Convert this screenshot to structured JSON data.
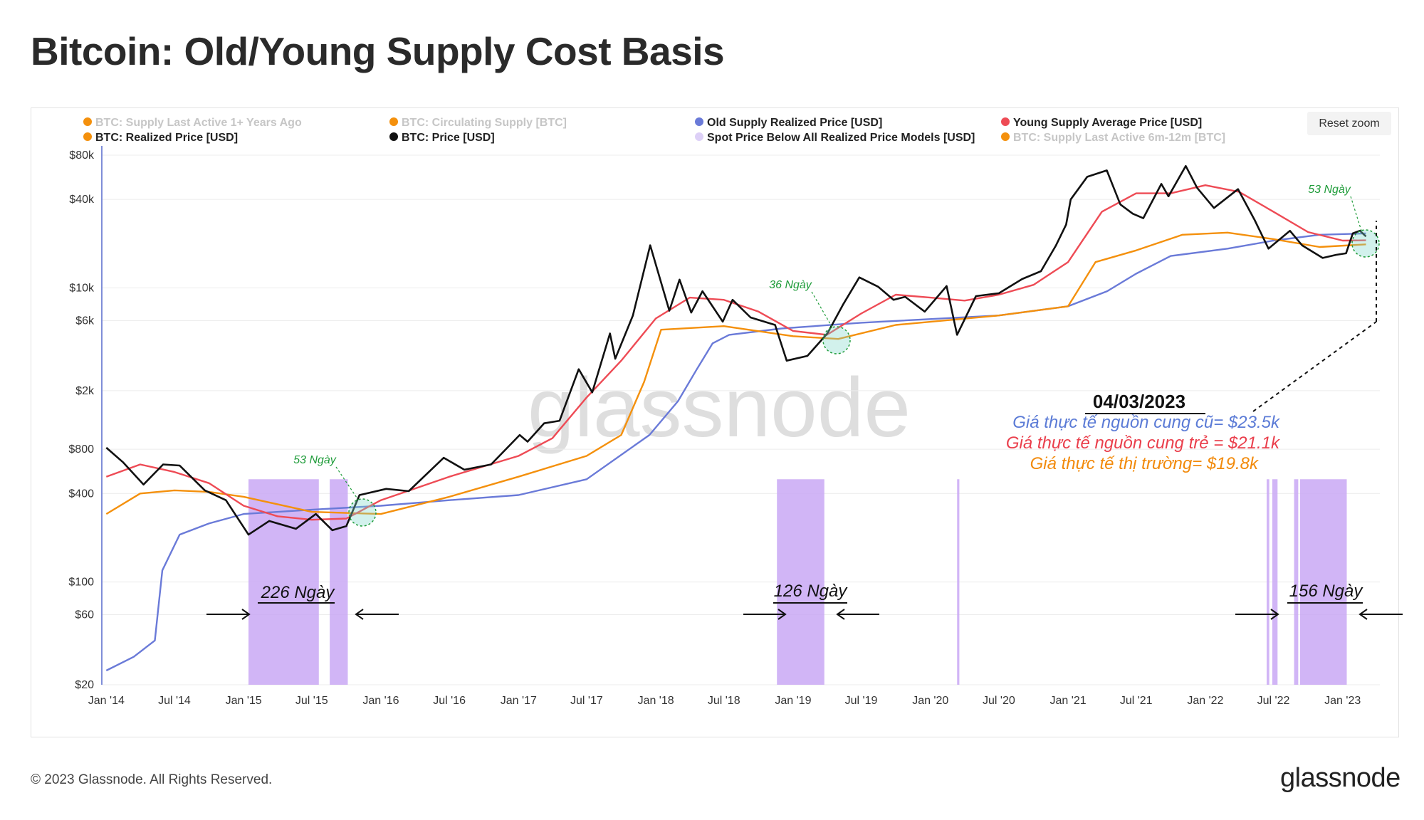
{
  "title": "Bitcoin: Old/Young Supply Cost Basis",
  "reset_zoom": "Reset zoom",
  "copyright": "© 2023 Glassnode. All Rights Reserved.",
  "brand": "glassnode",
  "watermark": "glassnode",
  "colors": {
    "price": "#111111",
    "old_supply": "#6a7ad8",
    "young_supply": "#ee4b55",
    "realized": "#f4900c",
    "spot_below": "#c9a8f5",
    "disabled": "#c6c6c6",
    "blue_text": "#5b7bd6",
    "red_text": "#ea3f4c",
    "orange_text": "#f28a0b",
    "green_text": "#1f9c3a"
  },
  "chart_data": {
    "type": "line",
    "y_scale": "log",
    "ylim": [
      20,
      80000
    ],
    "xlim": [
      "2013-12-20",
      "2023-04-10"
    ],
    "y_ticks": [
      "$20",
      "$60",
      "$100",
      "$400",
      "$800",
      "$2k",
      "$6k",
      "$10k",
      "$40k",
      "$80k"
    ],
    "y_tick_values": [
      20,
      60,
      100,
      400,
      800,
      2000,
      6000,
      10000,
      40000,
      80000
    ],
    "x_ticks": [
      "Jan '14",
      "Jul '14",
      "Jan '15",
      "Jul '15",
      "Jan '16",
      "Jul '16",
      "Jan '17",
      "Jul '17",
      "Jan '18",
      "Jul '18",
      "Jan '19",
      "Jul '19",
      "Jan '20",
      "Jul '20",
      "Jan '21",
      "Jul '21",
      "Jan '22",
      "Jul '22",
      "Jan '23"
    ],
    "x_tick_dates": [
      "2014-01-01",
      "2014-07-01",
      "2015-01-01",
      "2015-07-01",
      "2016-01-01",
      "2016-07-01",
      "2017-01-01",
      "2017-07-01",
      "2018-01-01",
      "2018-07-01",
      "2019-01-01",
      "2019-07-01",
      "2020-01-01",
      "2020-07-01",
      "2021-01-01",
      "2021-07-01",
      "2022-01-01",
      "2022-07-01",
      "2023-01-01"
    ],
    "legend": [
      {
        "label": "BTC: Supply Last Active 1+ Years Ago",
        "color": "#f4900c",
        "enabled": false
      },
      {
        "label": "BTC: Circulating Supply [BTC]",
        "color": "#f4900c",
        "enabled": false
      },
      {
        "label": "Old Supply Realized Price [USD]",
        "color": "#6a7ad8",
        "enabled": true
      },
      {
        "label": "Young Supply Average Price [USD]",
        "color": "#ee4b55",
        "enabled": true
      },
      {
        "label": "BTC: Realized Price [USD]",
        "color": "#f4900c",
        "enabled": true
      },
      {
        "label": "BTC: Price [USD]",
        "color": "#111111",
        "enabled": true
      },
      {
        "label": "Spot Price Below All Realized Price Models [USD]",
        "color": "#ddd0f7",
        "enabled": true
      },
      {
        "label": "BTC: Supply Last Active 6m-12m [BTC]",
        "color": "#f4900c",
        "enabled": false
      }
    ],
    "series": [
      {
        "name": "BTC: Price [USD]",
        "color": "#111111",
        "x": [
          "2014-01-01",
          "2014-02-15",
          "2014-04-10",
          "2014-06-01",
          "2014-07-15",
          "2014-09-20",
          "2014-11-15",
          "2015-01-14",
          "2015-03-10",
          "2015-05-20",
          "2015-07-12",
          "2015-08-25",
          "2015-10-01",
          "2015-11-05",
          "2016-01-15",
          "2016-03-15",
          "2016-06-16",
          "2016-08-10",
          "2016-10-20",
          "2017-01-04",
          "2017-01-25",
          "2017-03-10",
          "2017-04-20",
          "2017-06-10",
          "2017-07-16",
          "2017-09-01",
          "2017-09-15",
          "2017-11-01",
          "2017-12-17",
          "2018-02-06",
          "2018-03-05",
          "2018-04-05",
          "2018-05-05",
          "2018-06-28",
          "2018-07-24",
          "2018-09-10",
          "2018-11-14",
          "2018-12-15",
          "2019-02-08",
          "2019-04-02",
          "2019-05-15",
          "2019-06-26",
          "2019-08-15",
          "2019-09-25",
          "2019-10-26",
          "2019-12-17",
          "2020-02-13",
          "2020-03-12",
          "2020-05-01",
          "2020-07-01",
          "2020-09-01",
          "2020-10-21",
          "2020-11-30",
          "2020-12-27",
          "2021-01-08",
          "2021-02-21",
          "2021-04-14",
          "2021-05-20",
          "2021-06-22",
          "2021-07-20",
          "2021-09-06",
          "2021-09-25",
          "2021-11-10",
          "2021-12-10",
          "2022-01-24",
          "2022-03-29",
          "2022-05-12",
          "2022-06-18",
          "2022-08-14",
          "2022-09-15",
          "2022-11-09",
          "2022-12-15",
          "2023-01-10",
          "2023-01-28",
          "2023-02-16",
          "2023-03-04"
        ],
        "values": [
          820,
          650,
          460,
          630,
          620,
          420,
          360,
          210,
          260,
          230,
          290,
          225,
          240,
          390,
          430,
          415,
          700,
          580,
          630,
          1000,
          900,
          1200,
          1250,
          2800,
          1950,
          4900,
          3300,
          6500,
          19500,
          7000,
          11400,
          6800,
          9500,
          5900,
          8300,
          6300,
          5600,
          3200,
          3450,
          4900,
          7800,
          11800,
          10200,
          8300,
          8700,
          6900,
          10300,
          4800,
          8800,
          9200,
          11500,
          13000,
          19500,
          27000,
          40000,
          57000,
          63000,
          37000,
          32000,
          29800,
          51000,
          42000,
          67500,
          48000,
          35000,
          47000,
          29000,
          18500,
          24500,
          19500,
          16000,
          16800,
          17200,
          23500,
          24500,
          22400
        ]
      },
      {
        "name": "Young Supply Average Price [USD]",
        "color": "#ee4b55",
        "x": [
          "2014-01-01",
          "2014-04-01",
          "2014-07-01",
          "2014-10-01",
          "2015-01-01",
          "2015-04-01",
          "2015-07-01",
          "2015-10-01",
          "2016-01-01",
          "2016-07-01",
          "2017-01-01",
          "2017-04-01",
          "2017-07-01",
          "2017-10-01",
          "2018-01-01",
          "2018-04-01",
          "2018-07-01",
          "2018-10-01",
          "2019-01-01",
          "2019-04-01",
          "2019-07-01",
          "2019-10-01",
          "2020-01-01",
          "2020-04-01",
          "2020-07-01",
          "2020-10-01",
          "2021-01-01",
          "2021-04-01",
          "2021-07-01",
          "2021-10-01",
          "2022-01-01",
          "2022-04-01",
          "2022-07-01",
          "2022-10-01",
          "2023-01-01",
          "2023-03-04"
        ],
        "values": [
          520,
          630,
          560,
          470,
          330,
          280,
          265,
          270,
          360,
          520,
          720,
          950,
          1800,
          3200,
          6200,
          8600,
          8300,
          6900,
          5100,
          4800,
          6700,
          9000,
          8600,
          8200,
          9000,
          10500,
          15000,
          33000,
          44000,
          44000,
          50000,
          45000,
          33000,
          24000,
          21000,
          21100
        ]
      },
      {
        "name": "BTC: Realized Price [USD]",
        "color": "#f4900c",
        "x": [
          "2014-01-01",
          "2014-04-01",
          "2014-07-01",
          "2014-10-01",
          "2015-01-01",
          "2015-07-01",
          "2016-01-01",
          "2016-07-01",
          "2017-01-01",
          "2017-07-01",
          "2017-10-01",
          "2017-12-01",
          "2018-01-15",
          "2018-07-01",
          "2019-01-01",
          "2019-05-01",
          "2019-10-01",
          "2020-07-01",
          "2021-01-01",
          "2021-03-15",
          "2021-07-01",
          "2021-11-01",
          "2022-03-01",
          "2022-07-01",
          "2022-11-01",
          "2023-03-04"
        ],
        "values": [
          290,
          400,
          420,
          410,
          380,
          300,
          290,
          380,
          520,
          720,
          1000,
          2300,
          5200,
          5500,
          4700,
          4500,
          5600,
          6500,
          7500,
          15000,
          18000,
          23000,
          23800,
          21500,
          19000,
          19800
        ]
      },
      {
        "name": "Old Supply Realized Price [USD]",
        "color": "#6a7ad8",
        "x": [
          "2014-01-01",
          "2014-03-15",
          "2014-05-10",
          "2014-05-30",
          "2014-07-15",
          "2014-10-01",
          "2015-01-01",
          "2015-07-01",
          "2016-01-01",
          "2016-07-01",
          "2017-01-01",
          "2017-07-01",
          "2017-12-15",
          "2018-03-01",
          "2018-04-20",
          "2018-06-01",
          "2018-07-15",
          "2018-12-01",
          "2019-07-01",
          "2020-07-01",
          "2021-01-01",
          "2021-04-15",
          "2021-07-01",
          "2021-10-01",
          "2022-03-01",
          "2022-07-01",
          "2022-11-01",
          "2023-03-04"
        ],
        "values": [
          25,
          31,
          40,
          120,
          210,
          250,
          290,
          310,
          330,
          360,
          390,
          500,
          1000,
          1700,
          2800,
          4200,
          4800,
          5300,
          5800,
          6500,
          7500,
          9500,
          12500,
          16500,
          18500,
          21000,
          23000,
          23500
        ]
      }
    ],
    "shaded_periods": [
      [
        "2015-01-14",
        "2015-07-20"
      ],
      [
        "2015-08-18",
        "2015-10-05"
      ],
      [
        "2018-11-19",
        "2019-03-25"
      ],
      [
        "2020-03-12",
        "2020-03-18"
      ],
      [
        "2022-06-13",
        "2022-06-20"
      ],
      [
        "2022-06-28",
        "2022-07-12"
      ],
      [
        "2022-08-25",
        "2022-09-05"
      ],
      [
        "2022-09-10",
        "2023-01-12"
      ]
    ],
    "annotations": {
      "periods": [
        "226 Ngày",
        "126 Ngày",
        "156 Ngày"
      ],
      "crossovers": [
        "53 Ngày",
        "36 Ngày",
        "53 Ngày"
      ],
      "date": "04/03/2023",
      "old_supply_note": "Giá thực tế nguồn cung cũ= $23.5k",
      "young_supply_note": "Giá thực tế nguồn cung trẻ = $21.1k",
      "market_note": "Giá thực tế thị trường= $19.8k"
    }
  }
}
